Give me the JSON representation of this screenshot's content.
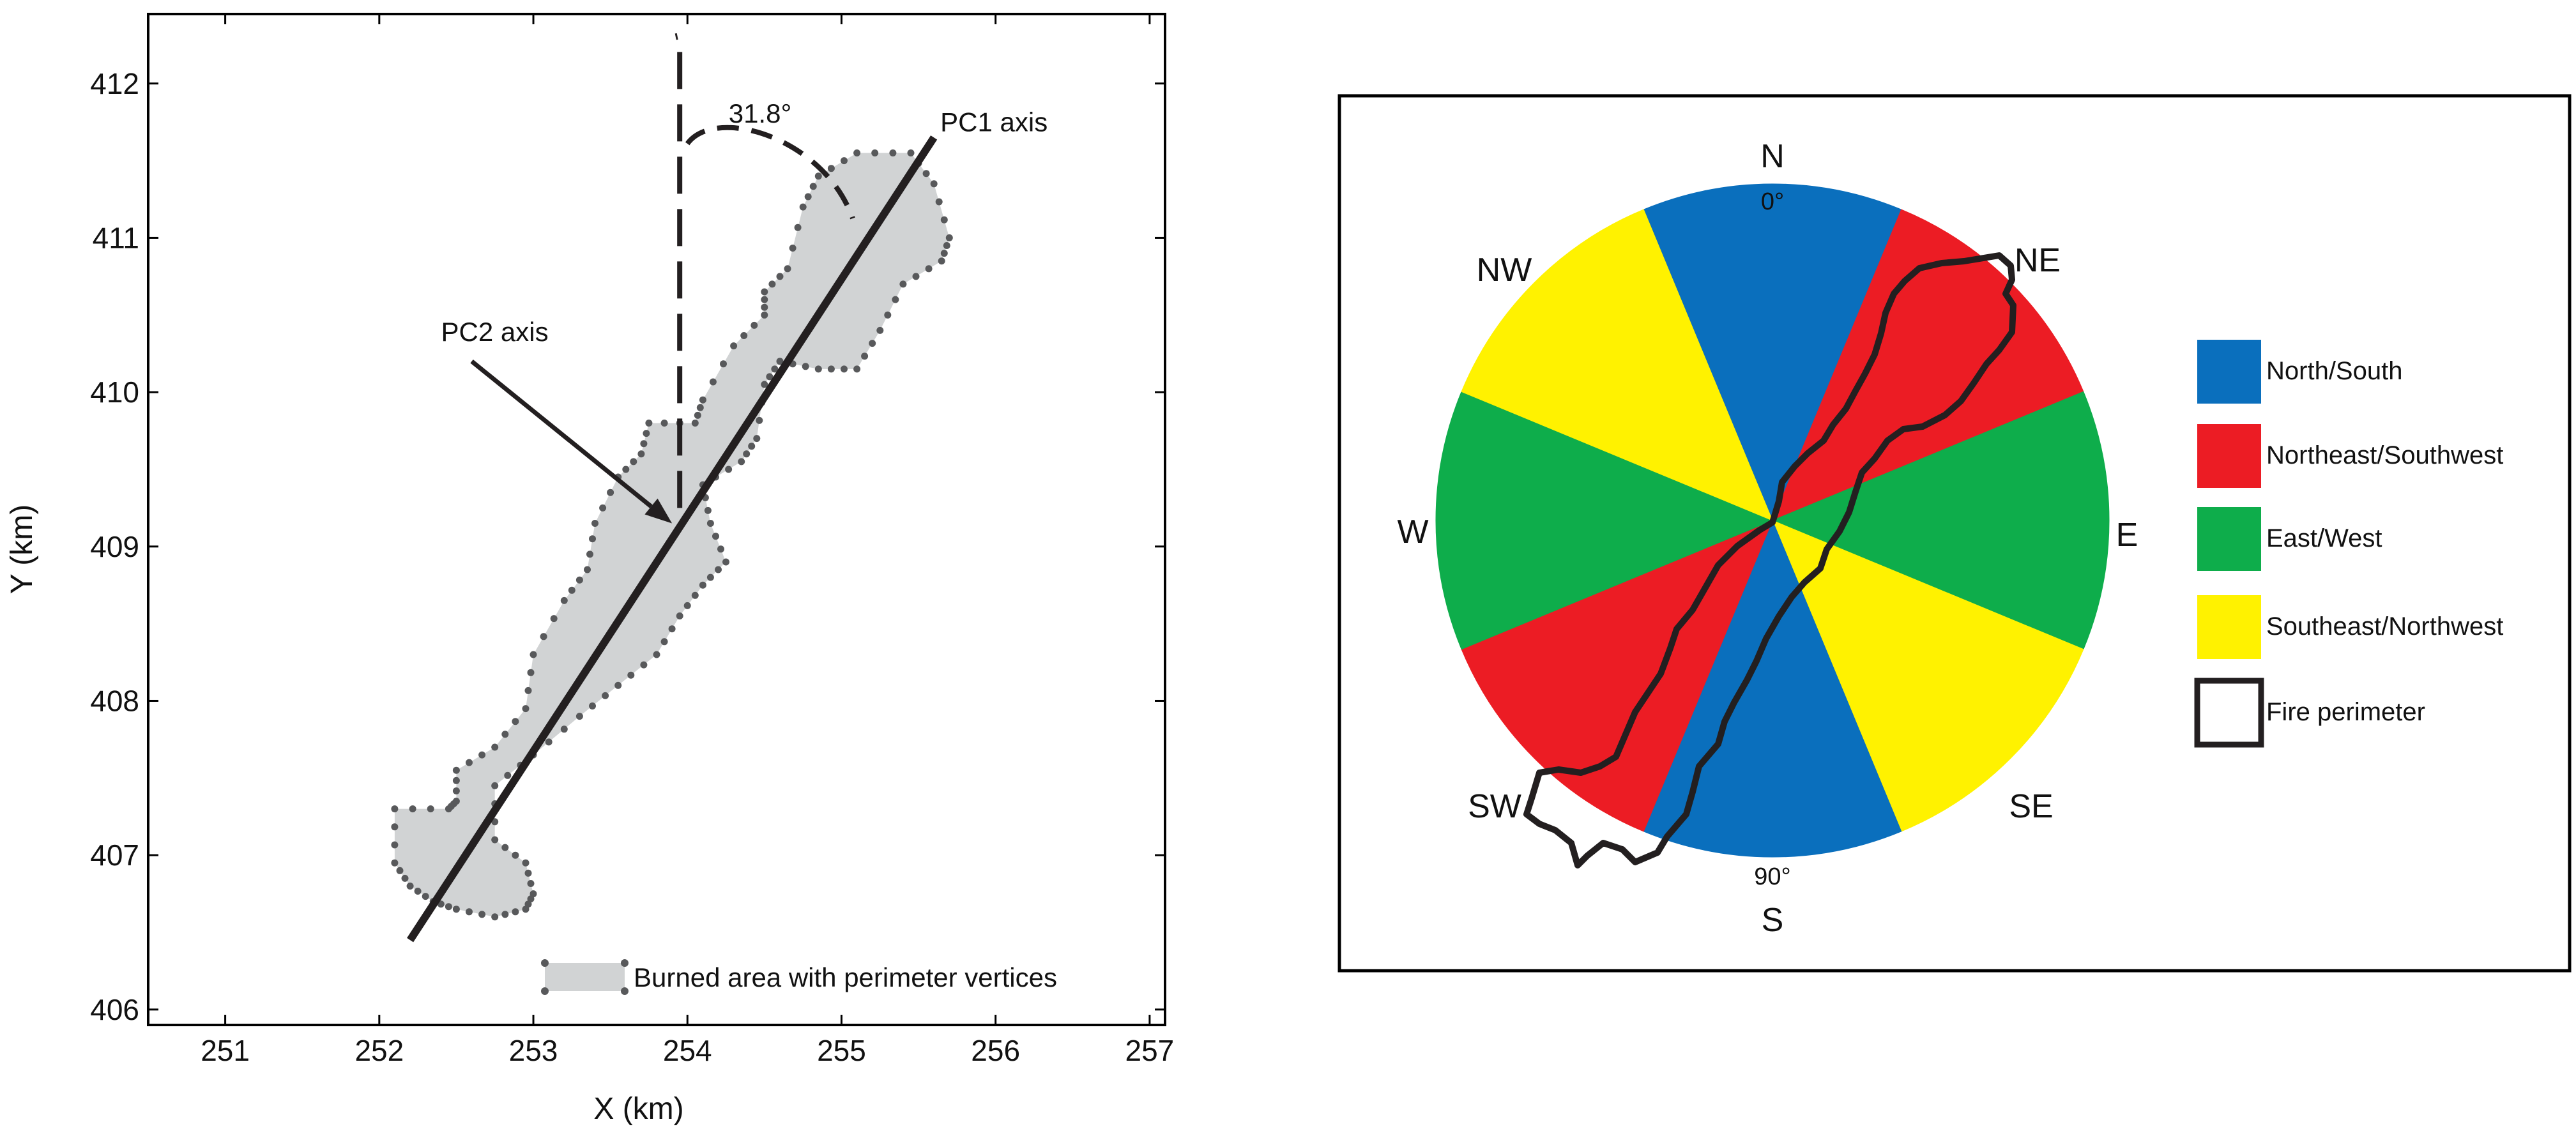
{
  "chart_data": [
    {
      "type": "scatter",
      "xlabel": "X (km)",
      "ylabel": "Y (km)",
      "xlim": [
        250.5,
        257.1
      ],
      "ylim": [
        405.9,
        412.45
      ],
      "xticks": [
        251,
        252,
        253,
        254,
        255,
        256,
        257
      ],
      "yticks": [
        406,
        407,
        408,
        409,
        410,
        411,
        412
      ],
      "grid": false,
      "legend": {
        "position": "bottom-right",
        "label": "Burned area with perimeter vertices"
      },
      "burned_area_polygon": [
        [
          252.1,
          407.3
        ],
        [
          252.45,
          407.3
        ],
        [
          252.5,
          407.35
        ],
        [
          252.5,
          407.55
        ],
        [
          252.75,
          407.7
        ],
        [
          252.95,
          407.95
        ],
        [
          253.0,
          408.3
        ],
        [
          253.2,
          408.65
        ],
        [
          253.35,
          408.85
        ],
        [
          253.4,
          409.15
        ],
        [
          253.55,
          409.45
        ],
        [
          253.7,
          409.6
        ],
        [
          253.75,
          409.8
        ],
        [
          254.05,
          409.8
        ],
        [
          254.1,
          409.95
        ],
        [
          254.3,
          410.3
        ],
        [
          254.5,
          410.5
        ],
        [
          254.5,
          410.65
        ],
        [
          254.65,
          410.8
        ],
        [
          254.75,
          411.2
        ],
        [
          254.85,
          411.4
        ],
        [
          255.1,
          411.55
        ],
        [
          255.45,
          411.55
        ],
        [
          255.6,
          411.35
        ],
        [
          255.7,
          411.0
        ],
        [
          255.65,
          410.85
        ],
        [
          255.4,
          410.7
        ],
        [
          255.25,
          410.4
        ],
        [
          255.1,
          410.15
        ],
        [
          254.85,
          410.15
        ],
        [
          254.6,
          410.2
        ],
        [
          254.5,
          410.05
        ],
        [
          254.45,
          409.7
        ],
        [
          254.35,
          409.55
        ],
        [
          254.1,
          409.4
        ],
        [
          254.15,
          409.15
        ],
        [
          254.25,
          408.9
        ],
        [
          254.1,
          408.75
        ],
        [
          253.95,
          408.55
        ],
        [
          253.8,
          408.3
        ],
        [
          253.55,
          408.1
        ],
        [
          253.3,
          407.9
        ],
        [
          253.0,
          407.65
        ],
        [
          252.75,
          407.45
        ],
        [
          252.75,
          407.1
        ],
        [
          252.95,
          406.95
        ],
        [
          253.0,
          406.75
        ],
        [
          252.95,
          406.65
        ],
        [
          252.75,
          406.6
        ],
        [
          252.5,
          406.65
        ],
        [
          252.35,
          406.7
        ],
        [
          252.2,
          406.8
        ],
        [
          252.1,
          406.95
        ]
      ],
      "pc1_axis": {
        "label": "PC1 axis",
        "x": [
          252.2,
          255.6
        ],
        "y": [
          406.45,
          411.65
        ]
      },
      "vertical_reference": {
        "x": 253.95,
        "y": [
          409.25,
          412.3
        ]
      },
      "pc2_axis_label": "PC2 axis",
      "pc2_arrow_target": [
        253.9,
        409.15
      ],
      "pc2_label_anchor": [
        252.6,
        410.2
      ],
      "angle": {
        "label": "31.8°",
        "value_deg": 31.8
      }
    },
    {
      "type": "pie",
      "title": "",
      "sectors": [
        {
          "name": "North/South",
          "color": "#0a6fbd",
          "from_deg": -22.5,
          "to_deg": 22.5
        },
        {
          "name": "Northeast/Southwest",
          "color": "#ec1c24",
          "from_deg": 22.5,
          "to_deg": 67.5
        },
        {
          "name": "East/West",
          "color": "#0ead4b",
          "from_deg": 67.5,
          "to_deg": 112.5
        },
        {
          "name": "Southeast/Northwest",
          "color": "#fff200",
          "from_deg": 112.5,
          "to_deg": 157.5
        },
        {
          "name": "North/South",
          "color": "#0a6fbd",
          "from_deg": 157.5,
          "to_deg": 202.5
        },
        {
          "name": "Northeast/Southwest",
          "color": "#ec1c24",
          "from_deg": 202.5,
          "to_deg": 247.5
        },
        {
          "name": "East/West",
          "color": "#0ead4b",
          "from_deg": 247.5,
          "to_deg": 292.5
        },
        {
          "name": "Southeast/Northwest",
          "color": "#fff200",
          "from_deg": 292.5,
          "to_deg": 337.5
        }
      ],
      "directions": [
        "N",
        "NE",
        "E",
        "SE",
        "S",
        "SW",
        "W",
        "NW"
      ],
      "degree_labels": {
        "top": "0°",
        "bottom": "90°"
      },
      "legend": [
        {
          "label": "North/South",
          "color": "#0a6fbd"
        },
        {
          "label": "Northeast/Southwest",
          "color": "#ec1c24"
        },
        {
          "label": "East/West",
          "color": "#0ead4b"
        },
        {
          "label": "Southeast/Northwest",
          "color": "#fff200"
        },
        {
          "label": "Fire perimeter",
          "color": "#ffffff"
        }
      ]
    }
  ]
}
